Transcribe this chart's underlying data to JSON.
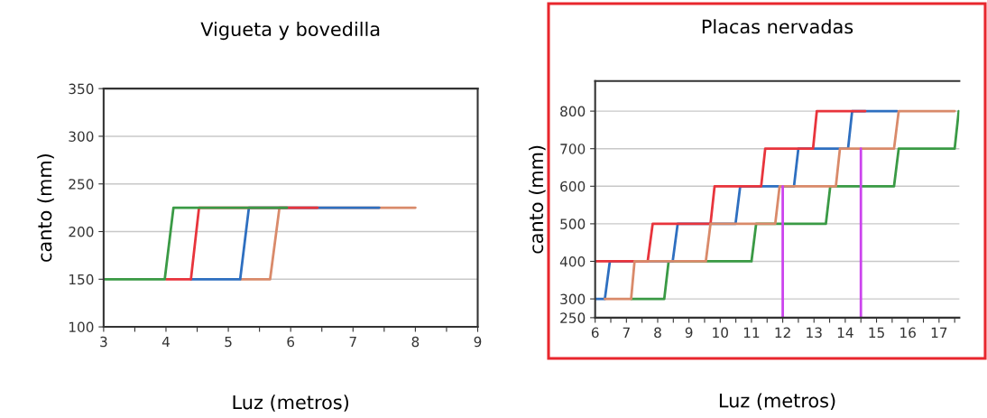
{
  "chart_data": [
    {
      "type": "line",
      "title": "Vigueta y bovedilla",
      "xlabel": "Luz (metros)",
      "ylabel": "canto (mm)",
      "xlim": [
        3,
        9
      ],
      "ylim": [
        100,
        350
      ],
      "xticks": [
        3,
        {
          "value": 3.5,
          "label": null
        },
        4,
        {
          "value": 4.5,
          "label": null
        },
        5,
        {
          "value": 5.5,
          "label": null
        },
        6,
        {
          "value": 6.5,
          "label": null
        },
        7,
        {
          "value": 7.5,
          "label": null
        },
        8,
        {
          "value": 8.5,
          "label": null
        },
        9
      ],
      "yticks": [
        100,
        150,
        200,
        250,
        300,
        350
      ],
      "grid": "y",
      "series": [
        {
          "color": "#d98a6a",
          "x": [
            5.2,
            5.67,
            5.82,
            8
          ],
          "values": [
            150,
            150,
            225,
            225
          ]
        },
        {
          "color": "#2e6fc0",
          "x": [
            4.4,
            5.19,
            5.33,
            7.42
          ],
          "values": [
            150,
            150,
            225,
            225
          ]
        },
        {
          "color": "#e8343c",
          "x": [
            4,
            4.4,
            4.53,
            6.43
          ],
          "values": [
            150,
            150,
            225,
            225
          ]
        },
        {
          "color": "#3a9a45",
          "x": [
            3,
            3.98,
            4.12,
            5.94
          ],
          "values": [
            150,
            150,
            225,
            225
          ]
        }
      ]
    },
    {
      "type": "line",
      "title": "Placas nervadas",
      "xlabel": "Luz (metros)",
      "ylabel": "canto (mm)",
      "xlim": [
        6,
        17.65
      ],
      "ylim": [
        250,
        880
      ],
      "xticks": [
        6,
        {
          "value": 6.5,
          "label": null
        },
        7,
        {
          "value": 7.5,
          "label": null
        },
        8,
        {
          "value": 8.5,
          "label": null
        },
        9,
        {
          "value": 9.5,
          "label": null
        },
        10,
        {
          "value": 10.5,
          "label": null
        },
        11,
        {
          "value": 11.5,
          "label": null
        },
        12,
        {
          "value": 12.5,
          "label": null
        },
        13,
        {
          "value": 13.5,
          "label": null
        },
        14,
        {
          "value": 14.5,
          "label": null
        },
        15,
        {
          "value": 15.5,
          "label": null
        },
        16,
        {
          "value": 16.5,
          "label": null
        },
        17,
        {
          "value": 17.5,
          "label": null
        }
      ],
      "yticks": [
        250,
        300,
        400,
        500,
        600,
        700,
        800
      ],
      "grid": "y",
      "series": [
        {
          "color": "#3a9a45",
          "x": [
            7.15,
            8.21,
            8.35,
            11.0,
            11.15,
            13.38,
            13.52,
            15.56,
            15.71,
            17.5,
            17.63
          ],
          "values": [
            300,
            300,
            400,
            400,
            500,
            500,
            600,
            600,
            700,
            700,
            800
          ]
        },
        {
          "color": "#2e6fc0",
          "x": [
            6,
            6.31,
            6.47,
            8.48,
            8.64,
            10.49,
            10.64,
            12.36,
            12.5,
            14.09,
            14.22,
            15.66
          ],
          "values": [
            300,
            300,
            400,
            400,
            500,
            500,
            600,
            600,
            700,
            700,
            800,
            800
          ]
        },
        {
          "color": "#e8343c",
          "x": [
            6,
            7.68,
            7.84,
            9.69,
            9.82,
            11.31,
            11.44,
            12.97,
            13.09,
            14.64
          ],
          "values": [
            400,
            400,
            500,
            500,
            600,
            600,
            700,
            700,
            800,
            800
          ]
        },
        {
          "color": "#d98a6a",
          "x": [
            6.31,
            7.15,
            7.26,
            9.54,
            9.69,
            11.76,
            11.9,
            13.7,
            13.83,
            15.56,
            15.71,
            17.5
          ],
          "values": [
            300,
            300,
            400,
            400,
            500,
            500,
            600,
            600,
            700,
            700,
            800,
            800
          ]
        },
        {
          "color": "#cc44ee",
          "x": [
            12,
            12
          ],
          "values": [
            250,
            600
          ]
        },
        {
          "color": "#cc44ee",
          "x": [
            14.5,
            14.5
          ],
          "values": [
            250,
            700
          ]
        }
      ]
    }
  ]
}
